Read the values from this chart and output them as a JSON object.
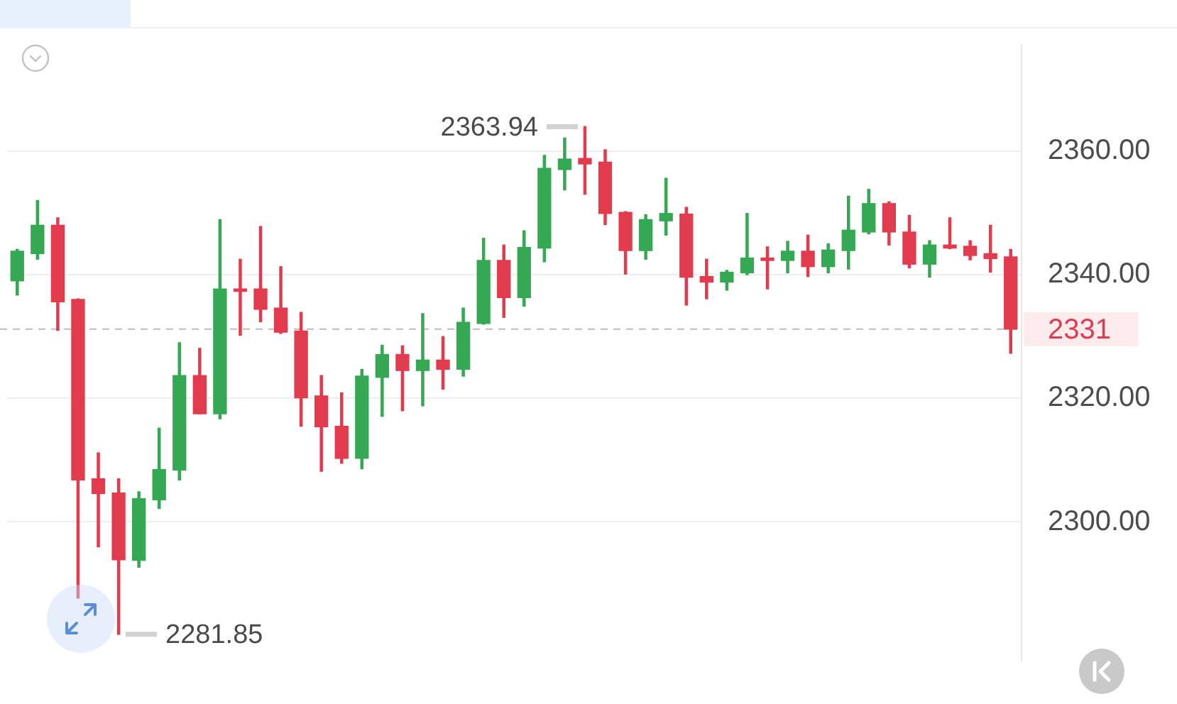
{
  "chart_data": {
    "type": "candlestick",
    "categories": [
      null,
      null,
      null,
      null,
      null,
      null,
      null,
      null,
      null,
      null,
      null,
      null,
      null,
      null,
      null,
      null,
      null,
      null,
      null,
      null,
      null,
      null,
      null,
      null,
      null,
      null,
      null,
      null,
      null,
      null,
      null,
      null,
      null,
      null,
      null,
      null,
      null,
      null,
      null,
      null,
      null,
      null,
      null,
      null,
      null,
      null,
      null,
      null,
      null,
      null
    ],
    "ohlc": [
      [
        2339.0,
        2344.1,
        2336.7,
        2343.8
      ],
      [
        2343.4,
        2352.0,
        2342.5,
        2348.0
      ],
      [
        2348.0,
        2349.2,
        2331.0,
        2335.6
      ],
      [
        2336.0,
        2336.1,
        2287.7,
        2306.8
      ],
      [
        2307.0,
        2311.2,
        2296.0,
        2304.6
      ],
      [
        2304.7,
        2307.0,
        2281.85,
        2293.9
      ],
      [
        2293.8,
        2304.9,
        2292.7,
        2303.8
      ],
      [
        2303.6,
        2315.2,
        2302.2,
        2308.5
      ],
      [
        2308.4,
        2329.0,
        2306.8,
        2323.7
      ],
      [
        2323.7,
        2328.1,
        2317.5,
        2317.5
      ],
      [
        2317.5,
        2348.9,
        2316.7,
        2337.7
      ],
      [
        2337.7,
        2342.5,
        2330.2,
        2337.3
      ],
      [
        2337.7,
        2347.8,
        2332.4,
        2334.4
      ],
      [
        2334.6,
        2341.3,
        2330.5,
        2330.7
      ],
      [
        2330.9,
        2333.9,
        2315.5,
        2320.1
      ],
      [
        2320.4,
        2323.7,
        2308.2,
        2315.4
      ],
      [
        2315.5,
        2320.9,
        2309.5,
        2310.3
      ],
      [
        2310.3,
        2324.7,
        2308.6,
        2323.6
      ],
      [
        2323.4,
        2328.6,
        2317.1,
        2327.1
      ],
      [
        2327.1,
        2328.5,
        2318.0,
        2324.5
      ],
      [
        2324.5,
        2333.7,
        2318.8,
        2326.2
      ],
      [
        2326.2,
        2330.0,
        2321.5,
        2324.7
      ],
      [
        2324.7,
        2334.6,
        2323.6,
        2332.3
      ],
      [
        2332.1,
        2345.9,
        2332.0,
        2342.3
      ],
      [
        2342.3,
        2344.8,
        2333.1,
        2336.3
      ],
      [
        2336.3,
        2347.1,
        2334.9,
        2344.4
      ],
      [
        2344.3,
        2359.3,
        2342.1,
        2357.2
      ],
      [
        2357.0,
        2362.1,
        2353.7,
        2358.7
      ],
      [
        2358.8,
        2363.94,
        2353.0,
        2357.9
      ],
      [
        2358.2,
        2360.2,
        2348.1,
        2349.9
      ],
      [
        2350.1,
        2350.2,
        2340.1,
        2343.9
      ],
      [
        2343.9,
        2349.7,
        2342.5,
        2348.9
      ],
      [
        2348.7,
        2355.6,
        2346.4,
        2349.9
      ],
      [
        2349.8,
        2350.9,
        2335.1,
        2339.6
      ],
      [
        2339.7,
        2342.5,
        2336.1,
        2338.8
      ],
      [
        2338.8,
        2340.7,
        2337.5,
        2340.4
      ],
      [
        2340.3,
        2349.9,
        2340.0,
        2342.7
      ],
      [
        2342.7,
        2344.5,
        2337.7,
        2342.3
      ],
      [
        2342.3,
        2345.4,
        2340.3,
        2343.8
      ],
      [
        2343.8,
        2346.4,
        2339.7,
        2341.3
      ],
      [
        2341.3,
        2345.0,
        2340.3,
        2344.0
      ],
      [
        2343.9,
        2352.7,
        2340.9,
        2347.2
      ],
      [
        2346.9,
        2353.8,
        2346.6,
        2351.5
      ],
      [
        2351.5,
        2351.8,
        2344.8,
        2346.9
      ],
      [
        2346.9,
        2349.6,
        2341.1,
        2341.7
      ],
      [
        2341.7,
        2345.5,
        2339.6,
        2344.8
      ],
      [
        2344.8,
        2349.2,
        2344.2,
        2344.3
      ],
      [
        2344.6,
        2345.5,
        2342.4,
        2343.1
      ],
      [
        2343.4,
        2348.0,
        2340.4,
        2342.6
      ],
      [
        2342.9,
        2344.1,
        2327.3,
        2331.2
      ]
    ],
    "colors": [
      "#35a853",
      "#35a853",
      "#e23b4e",
      "#e23b4e",
      "#e23b4e",
      "#e23b4e",
      "#35a853",
      "#35a853",
      "#35a853",
      "#e23b4e",
      "#35a853",
      "#e23b4e",
      "#e23b4e",
      "#e23b4e",
      "#e23b4e",
      "#e23b4e",
      "#e23b4e",
      "#35a853",
      "#35a853",
      "#e23b4e",
      "#35a853",
      "#e23b4e",
      "#35a853",
      "#35a853",
      "#e23b4e",
      "#35a853",
      "#35a853",
      "#35a853",
      "#e23b4e",
      "#e23b4e",
      "#e23b4e",
      "#35a853",
      "#35a853",
      "#e23b4e",
      "#e23b4e",
      "#35a853",
      "#35a853",
      "#e23b4e",
      "#35a853",
      "#e23b4e",
      "#35a853",
      "#35a853",
      "#35a853",
      "#e23b4e",
      "#e23b4e",
      "#35a853",
      "#e23b4e",
      "#e23b4e",
      "#e23b4e",
      "#e23b4e"
    ],
    "ylim": [
      2277.7,
      2377.3
    ],
    "yticks": [
      {
        "value": 2300,
        "label": "2300.00"
      },
      {
        "value": 2320,
        "label": "2320.00"
      },
      {
        "value": 2340,
        "label": "2340.00"
      },
      {
        "value": 2360,
        "label": "2360.00"
      }
    ],
    "grid": "y",
    "tick_labels": "y",
    "ref_lines": [
      {
        "axis": "y",
        "value": 2331.2,
        "label": "2331",
        "color": "#bdbdbd",
        "line_style": "dashed"
      }
    ],
    "annotations": [
      "2363.94",
      "2281.85"
    ]
  }
}
